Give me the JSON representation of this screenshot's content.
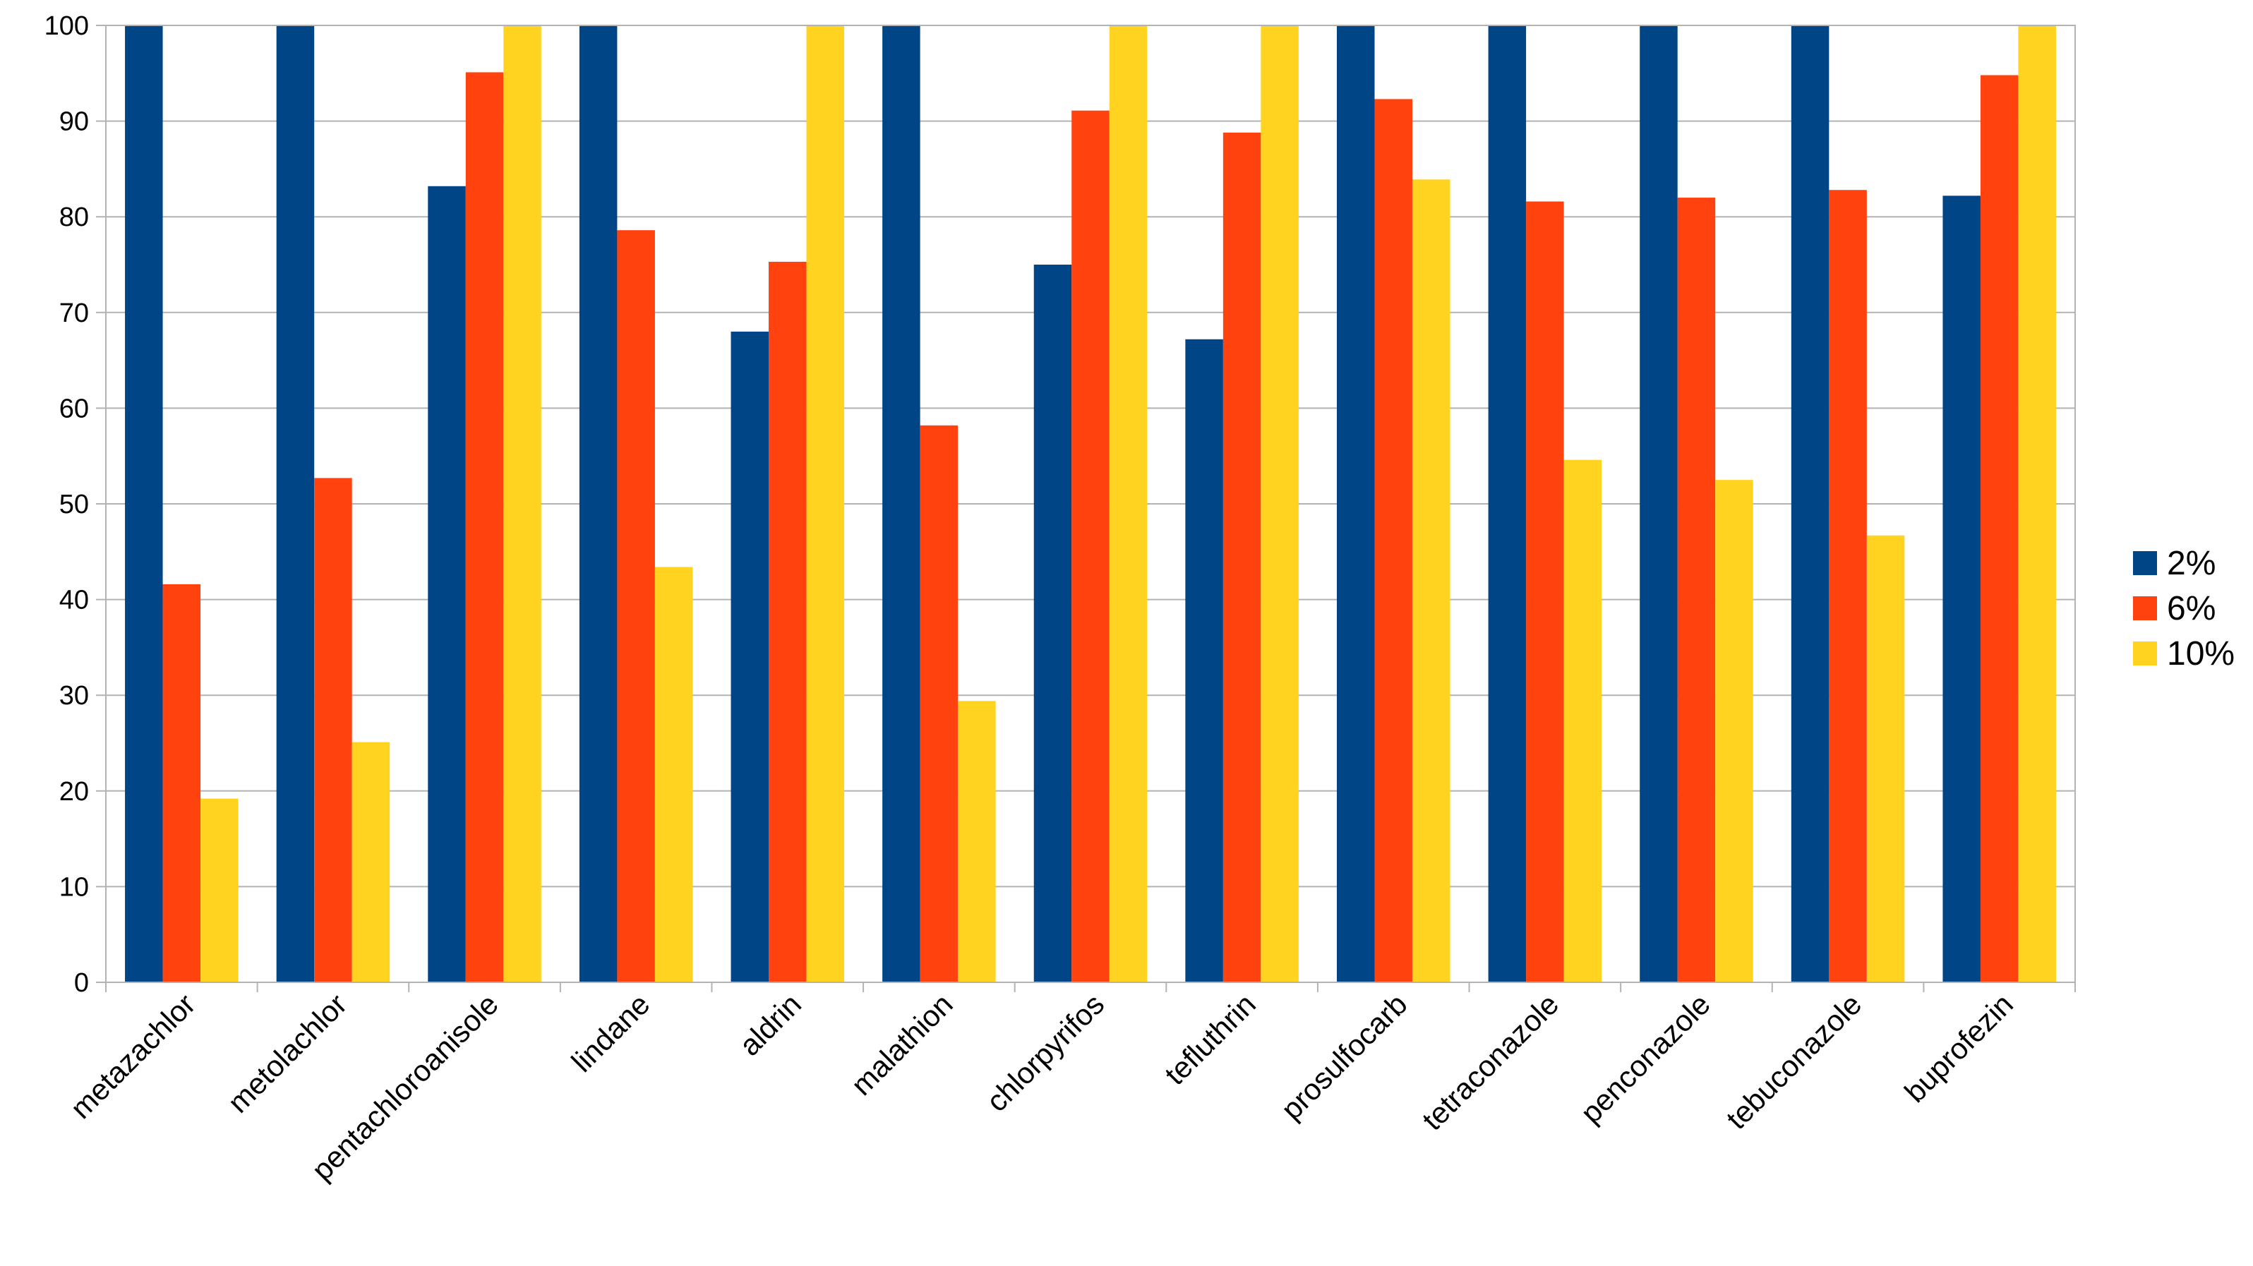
{
  "chart_data": {
    "type": "bar",
    "title": "",
    "xlabel": "",
    "ylabel": "",
    "ylim": [
      0,
      100
    ],
    "yticks": [
      0,
      10,
      20,
      30,
      40,
      50,
      60,
      70,
      80,
      90,
      100
    ],
    "grid": true,
    "legend_position": "right",
    "categories": [
      "metazachlor",
      "metolachlor",
      "pentachloroanisole",
      "lindane",
      "aldrin",
      "malathion",
      "chlorpyrifos",
      "tefluthrin",
      "prosulfocarb",
      "tetraconazole",
      "penconazole",
      "tebuconazole",
      "buprofezin"
    ],
    "series": [
      {
        "name": "2%",
        "color": "#004586",
        "values": [
          100,
          100,
          83.2,
          100,
          68,
          100,
          75,
          67.2,
          100,
          100,
          100,
          100,
          82.2
        ]
      },
      {
        "name": "6%",
        "color": "#ff420e",
        "values": [
          41.6,
          52.7,
          95.1,
          78.6,
          75.3,
          58.2,
          91.1,
          88.8,
          92.3,
          81.6,
          82,
          82.8,
          94.8
        ]
      },
      {
        "name": "10%",
        "color": "#ffd320",
        "values": [
          19.2,
          25.1,
          100,
          43.4,
          100,
          29.4,
          100,
          100,
          83.9,
          54.6,
          52.5,
          46.7,
          100
        ]
      }
    ]
  }
}
